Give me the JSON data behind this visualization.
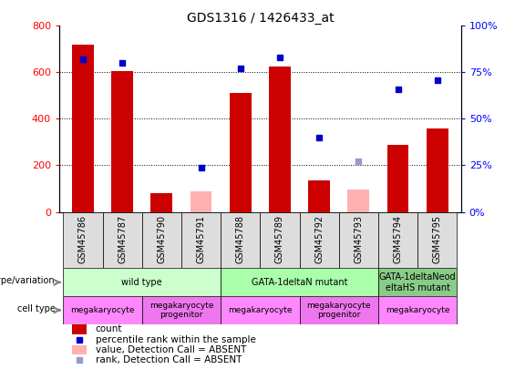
{
  "title": "GDS1316 / 1426433_at",
  "samples": [
    "GSM45786",
    "GSM45787",
    "GSM45790",
    "GSM45791",
    "GSM45788",
    "GSM45789",
    "GSM45792",
    "GSM45793",
    "GSM45794",
    "GSM45795"
  ],
  "counts": [
    720,
    605,
    80,
    null,
    510,
    625,
    135,
    null,
    290,
    360
  ],
  "counts_absent": [
    null,
    null,
    null,
    90,
    null,
    null,
    null,
    95,
    null,
    null
  ],
  "percentile_ranks": [
    82,
    80,
    null,
    24,
    77,
    83,
    40,
    null,
    66,
    71
  ],
  "percentile_ranks_absent": [
    null,
    null,
    null,
    null,
    null,
    null,
    null,
    27,
    null,
    null
  ],
  "ylim_left": [
    0,
    800
  ],
  "ylim_right": [
    0,
    100
  ],
  "bar_color": "#cc0000",
  "bar_absent_color": "#ffb0b0",
  "dot_color": "#0000cc",
  "dot_absent_color": "#9999cc",
  "genotype_groups": [
    {
      "label": "wild type",
      "start": 0,
      "end": 4,
      "color": "#ccffcc"
    },
    {
      "label": "GATA-1deltaN mutant",
      "start": 4,
      "end": 8,
      "color": "#aaffaa"
    },
    {
      "label": "GATA-1deltaNeod\neltaHS mutant",
      "start": 8,
      "end": 10,
      "color": "#88cc88"
    }
  ],
  "cell_type_groups": [
    {
      "label": "megakaryocyte",
      "start": 0,
      "end": 2,
      "color": "#ff88ff"
    },
    {
      "label": "megakaryocyte\nprogenitor",
      "start": 2,
      "end": 4,
      "color": "#ee77ee"
    },
    {
      "label": "megakaryocyte",
      "start": 4,
      "end": 6,
      "color": "#ff88ff"
    },
    {
      "label": "megakaryocyte\nprogenitor",
      "start": 6,
      "end": 8,
      "color": "#ee77ee"
    },
    {
      "label": "megakaryocyte",
      "start": 8,
      "end": 10,
      "color": "#ff88ff"
    }
  ],
  "left_yticks": [
    0,
    200,
    400,
    600,
    800
  ],
  "right_yticks": [
    0,
    25,
    50,
    75,
    100
  ],
  "right_yticklabels": [
    "0%",
    "25%",
    "50%",
    "75%",
    "100%"
  ],
  "grid_lines": [
    200,
    400,
    600
  ],
  "xtick_bg": "#dddddd"
}
